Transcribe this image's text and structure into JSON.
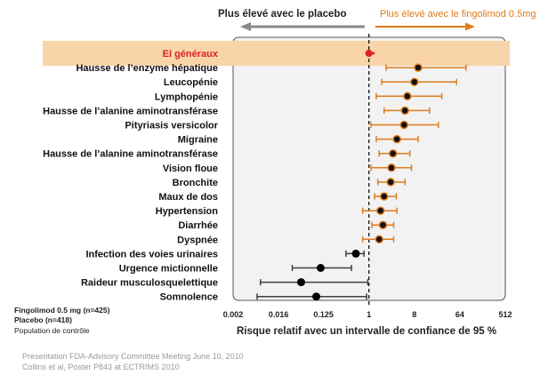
{
  "header": {
    "left_label": "Plus élevé avec le placebo",
    "right_label": "Plus élevé avec le fingolimod 0.5mg"
  },
  "legend": {
    "line1": "Fingolimod 0.5 mg (n=425)",
    "line2": "Placebo (n=418)",
    "line3": "Population de contrôle"
  },
  "footer": {
    "line1": "Presentation FDA-Advisory Committee Meeting June 10, 2010",
    "line2": "Collins et al, Poster P843 at ECTRIMS 2010"
  },
  "colors": {
    "fingolimod": "#e07b1a",
    "placebo": "#404040",
    "highlight_band": "#f8d4a8",
    "overall_marker": "#e02020",
    "panel_bg": "#f2f2f2"
  },
  "chart_data": {
    "type": "forest",
    "scale": "log2",
    "xlabel": "Risque relatif avec un intervalle de confiance de 95 %",
    "xticks": [
      0.002,
      0.016,
      0.125,
      1,
      8,
      64,
      512
    ],
    "xtick_labels": [
      "0.002",
      "0.016",
      "0.125",
      "1",
      "8",
      "64",
      "512"
    ],
    "reference_line": 1,
    "rows": [
      {
        "label": "EI généraux",
        "rr": 1.0,
        "lo": 0.9,
        "hi": 1.3,
        "group": "overall"
      },
      {
        "label": "Hausse de l’enzyme hépatique",
        "rr": 9.5,
        "lo": 2.2,
        "hi": 85,
        "group": "fingolimod"
      },
      {
        "label": "Leucopénie",
        "rr": 8.0,
        "lo": 1.8,
        "hi": 55,
        "group": "fingolimod"
      },
      {
        "label": "Lymphopénie",
        "rr": 5.8,
        "lo": 1.4,
        "hi": 28,
        "group": "fingolimod"
      },
      {
        "label": "Hausse de l’alanine aminotransférase",
        "rr": 5.2,
        "lo": 2.0,
        "hi": 16,
        "group": "fingolimod"
      },
      {
        "label": "Pityriasis versicolor",
        "rr": 5.0,
        "lo": 1.1,
        "hi": 24,
        "group": "fingolimod"
      },
      {
        "label": "Migraine",
        "rr": 3.6,
        "lo": 1.4,
        "hi": 9.5,
        "group": "fingolimod"
      },
      {
        "label": "Hausse de l’alanine aminotransférase",
        "rr": 3.0,
        "lo": 1.6,
        "hi": 6.5,
        "group": "fingolimod"
      },
      {
        "label": "Vision floue",
        "rr": 2.8,
        "lo": 1.1,
        "hi": 7.0,
        "group": "fingolimod"
      },
      {
        "label": "Bronchite",
        "rr": 2.7,
        "lo": 1.5,
        "hi": 5.2,
        "group": "fingolimod"
      },
      {
        "label": "Maux de dos",
        "rr": 2.0,
        "lo": 1.3,
        "hi": 3.5,
        "group": "fingolimod"
      },
      {
        "label": "Hypertension",
        "rr": 1.7,
        "lo": 0.75,
        "hi": 3.6,
        "group": "fingolimod"
      },
      {
        "label": "Diarrhée",
        "rr": 1.9,
        "lo": 1.15,
        "hi": 3.1,
        "group": "fingolimod"
      },
      {
        "label": "Dyspnée",
        "rr": 1.6,
        "lo": 0.75,
        "hi": 3.1,
        "group": "fingolimod"
      },
      {
        "label": "Infection des voies urinaires",
        "rr": 0.55,
        "lo": 0.35,
        "hi": 0.8,
        "group": "placebo"
      },
      {
        "label": "Urgence mictionnelle",
        "rr": 0.11,
        "lo": 0.03,
        "hi": 0.45,
        "group": "placebo"
      },
      {
        "label": "Raideur musculosquelettique",
        "rr": 0.045,
        "lo": 0.007,
        "hi": 0.95,
        "group": "placebo"
      },
      {
        "label": "Somnolence",
        "rr": 0.09,
        "lo": 0.006,
        "hi": 0.9,
        "group": "placebo"
      }
    ]
  }
}
